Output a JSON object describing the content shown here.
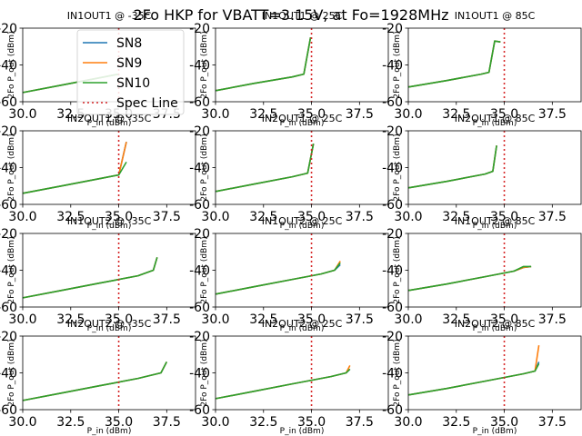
{
  "figure": {
    "title": "2Fo HKP for VBATT=3.15V, at Fo=1928MHz"
  },
  "legend": {
    "placement": "upper-left of first panel",
    "entries": [
      {
        "label": "SN8",
        "color": "#1f77b4",
        "style": "solid"
      },
      {
        "label": "SN9",
        "color": "#ff7f0e",
        "style": "solid"
      },
      {
        "label": "SN10",
        "color": "#2ca02c",
        "style": "solid"
      },
      {
        "label": "Spec Line",
        "color": "#d62728",
        "style": "dotted"
      }
    ]
  },
  "chart_data": [
    {
      "type": "line",
      "title": "IN1OUT1 @ -35C",
      "xlabel": "P_in (dBm)",
      "ylabel": "2Fo P_out (dBm)",
      "xlim": [
        30,
        39
      ],
      "ylim": [
        -60,
        -20
      ],
      "xticks": [
        "30.0",
        "32.5",
        "35.0",
        "37.5"
      ],
      "yticks": [
        "-60",
        "-40",
        "-20"
      ],
      "spec_x": 35.0,
      "series": [
        {
          "name": "SN8",
          "x": [
            30,
            32,
            34,
            35
          ],
          "y": [
            -55,
            -51,
            -47,
            -45
          ]
        },
        {
          "name": "SN9",
          "x": [
            30,
            32,
            34,
            35
          ],
          "y": [
            -55,
            -51,
            -47,
            -45
          ]
        },
        {
          "name": "SN10",
          "x": [
            30,
            32,
            34,
            35
          ],
          "y": [
            -55,
            -51,
            -47,
            -45
          ]
        }
      ]
    },
    {
      "type": "line",
      "title": "IN1OUT1 @ 25C",
      "xlabel": "P_in (dBm)",
      "ylabel": "2Fo P_out (dBm)",
      "xlim": [
        30,
        39
      ],
      "ylim": [
        -60,
        -20
      ],
      "xticks": [
        "30.0",
        "32.5",
        "35.0",
        "37.5"
      ],
      "yticks": [
        "-60",
        "-40",
        "-20"
      ],
      "spec_x": 35.0,
      "series": [
        {
          "name": "SN8",
          "x": [
            30,
            32,
            34,
            34.6,
            34.95
          ],
          "y": [
            -54,
            -50,
            -46.5,
            -45,
            -25
          ]
        },
        {
          "name": "SN9",
          "x": [
            30,
            32,
            34,
            34.6,
            34.95
          ],
          "y": [
            -54,
            -50,
            -46.5,
            -45,
            -25
          ]
        },
        {
          "name": "SN10",
          "x": [
            30,
            32,
            34,
            34.6,
            34.95
          ],
          "y": [
            -54,
            -50,
            -46.5,
            -45,
            -25
          ]
        }
      ]
    },
    {
      "type": "line",
      "title": "IN1OUT1 @ 85C",
      "xlabel": "P_in (dBm)",
      "ylabel": "2Fo P_out (dBm)",
      "xlim": [
        30,
        39
      ],
      "ylim": [
        -60,
        -20
      ],
      "xticks": [
        "30.0",
        "32.5",
        "35.0",
        "37.5"
      ],
      "yticks": [
        "-60",
        "-40",
        "-20"
      ],
      "spec_x": 35.0,
      "series": [
        {
          "name": "SN8",
          "x": [
            30,
            32,
            33.8,
            34.2,
            34.5,
            34.8
          ],
          "y": [
            -52,
            -48.5,
            -45,
            -44,
            -27,
            -27.5
          ]
        },
        {
          "name": "SN9",
          "x": [
            30,
            32,
            33.8,
            34.2,
            34.5,
            34.8
          ],
          "y": [
            -52,
            -48.5,
            -45,
            -44,
            -27,
            -27.5
          ]
        },
        {
          "name": "SN10",
          "x": [
            30,
            32,
            33.8,
            34.2,
            34.5,
            34.8
          ],
          "y": [
            -52,
            -48.5,
            -45,
            -44,
            -27,
            -27.5
          ]
        }
      ]
    },
    {
      "type": "line",
      "title": "IN2OUT1 @ -35C",
      "xlabel": "P_in (dBm)",
      "ylabel": "2Fo P_out (dBm)",
      "xlim": [
        30,
        39
      ],
      "ylim": [
        -60,
        -20
      ],
      "xticks": [
        "30.0",
        "32.5",
        "35.0",
        "37.5"
      ],
      "yticks": [
        "-60",
        "-40",
        "-20"
      ],
      "spec_x": 35.0,
      "series": [
        {
          "name": "SN8",
          "x": [
            30,
            32,
            34,
            35,
            35.4
          ],
          "y": [
            -54,
            -50,
            -46,
            -44,
            -26
          ]
        },
        {
          "name": "SN9",
          "x": [
            30,
            32,
            34,
            35,
            35.4
          ],
          "y": [
            -54,
            -50,
            -46,
            -44,
            -26
          ]
        },
        {
          "name": "SN10",
          "x": [
            30,
            32,
            34,
            35,
            35.4
          ],
          "y": [
            -54,
            -50,
            -46,
            -44,
            -37
          ]
        }
      ]
    },
    {
      "type": "line",
      "title": "IN2OUT1 @ 25C",
      "xlabel": "P_in (dBm)",
      "ylabel": "2Fo P_out (dBm)",
      "xlim": [
        30,
        39
      ],
      "ylim": [
        -60,
        -20
      ],
      "xticks": [
        "30.0",
        "32.5",
        "35.0",
        "37.5"
      ],
      "yticks": [
        "-60",
        "-40",
        "-20"
      ],
      "spec_x": 35.0,
      "series": [
        {
          "name": "SN8",
          "x": [
            30,
            32,
            34,
            34.8,
            35.1
          ],
          "y": [
            -53,
            -49,
            -45,
            -43,
            -27
          ]
        },
        {
          "name": "SN9",
          "x": [
            30,
            32,
            34,
            34.8,
            35.1
          ],
          "y": [
            -53,
            -49,
            -45,
            -43,
            -27
          ]
        },
        {
          "name": "SN10",
          "x": [
            30,
            32,
            34,
            34.8,
            35.1
          ],
          "y": [
            -53,
            -49,
            -45,
            -43,
            -27
          ]
        }
      ]
    },
    {
      "type": "line",
      "title": "IN2OUT1 @ 85C",
      "xlabel": "P_in (dBm)",
      "ylabel": "2Fo P_out (dBm)",
      "xlim": [
        30,
        39
      ],
      "ylim": [
        -60,
        -20
      ],
      "xticks": [
        "30.0",
        "32.5",
        "35.0",
        "37.5"
      ],
      "yticks": [
        "-60",
        "-40",
        "-20"
      ],
      "spec_x": 35.0,
      "series": [
        {
          "name": "SN8",
          "x": [
            30,
            32,
            34,
            34.4,
            34.6
          ],
          "y": [
            -51,
            -47.5,
            -43.5,
            -42,
            -28
          ]
        },
        {
          "name": "SN9",
          "x": [
            30,
            32,
            34,
            34.4,
            34.6
          ],
          "y": [
            -51,
            -47.5,
            -43.5,
            -42,
            -28
          ]
        },
        {
          "name": "SN10",
          "x": [
            30,
            32,
            34,
            34.4,
            34.6
          ],
          "y": [
            -51,
            -47.5,
            -43.5,
            -42,
            -28
          ]
        }
      ]
    },
    {
      "type": "line",
      "title": "IN1OUT2 @ -35C",
      "xlabel": "P_in (dBm)",
      "ylabel": "2Fo P_out (dBm)",
      "xlim": [
        30,
        39
      ],
      "ylim": [
        -60,
        -20
      ],
      "xticks": [
        "30.0",
        "32.5",
        "35.0",
        "37.5"
      ],
      "yticks": [
        "-60",
        "-40",
        "-20"
      ],
      "spec_x": 35.0,
      "series": [
        {
          "name": "SN8",
          "x": [
            30,
            32,
            34,
            36,
            36.8,
            37
          ],
          "y": [
            -55,
            -51,
            -47,
            -43,
            -40,
            -33
          ]
        },
        {
          "name": "SN9",
          "x": [
            30,
            32,
            34,
            36,
            36.8,
            37
          ],
          "y": [
            -55,
            -51,
            -47,
            -43,
            -40,
            -33
          ]
        },
        {
          "name": "SN10",
          "x": [
            30,
            32,
            34,
            36,
            36.8,
            37
          ],
          "y": [
            -55,
            -51,
            -47,
            -43,
            -40,
            -33
          ]
        }
      ]
    },
    {
      "type": "line",
      "title": "IN1OUT2 @ 25C",
      "xlabel": "P_in (dBm)",
      "ylabel": "2Fo P_out (dBm)",
      "xlim": [
        30,
        39
      ],
      "ylim": [
        -60,
        -20
      ],
      "xticks": [
        "30.0",
        "32.5",
        "35.0",
        "37.5"
      ],
      "yticks": [
        "-60",
        "-40",
        "-20"
      ],
      "spec_x": 35.0,
      "series": [
        {
          "name": "SN8",
          "x": [
            30,
            32,
            34,
            35.5,
            36.2,
            36.5
          ],
          "y": [
            -53,
            -49,
            -45,
            -42,
            -40,
            -37
          ]
        },
        {
          "name": "SN9",
          "x": [
            30,
            32,
            34,
            35.5,
            36.2,
            36.5
          ],
          "y": [
            -53,
            -49,
            -45,
            -42,
            -40,
            -35
          ]
        },
        {
          "name": "SN10",
          "x": [
            30,
            32,
            34,
            35.5,
            36.2,
            36.5
          ],
          "y": [
            -53,
            -49,
            -45,
            -42,
            -40,
            -36
          ]
        }
      ]
    },
    {
      "type": "line",
      "title": "IN1OUT2 @ 85C",
      "xlabel": "P_in (dBm)",
      "ylabel": "2Fo P_out (dBm)",
      "xlim": [
        30,
        39
      ],
      "ylim": [
        -60,
        -20
      ],
      "xticks": [
        "30.0",
        "32.5",
        "35.0",
        "37.5"
      ],
      "yticks": [
        "-60",
        "-40",
        "-20"
      ],
      "spec_x": 35.0,
      "series": [
        {
          "name": "SN8",
          "x": [
            30,
            32,
            34,
            35.5,
            36,
            36.4
          ],
          "y": [
            -51,
            -47.5,
            -43.5,
            -40.5,
            -38.5,
            -38
          ]
        },
        {
          "name": "SN9",
          "x": [
            30,
            32,
            34,
            35.5,
            36,
            36.4
          ],
          "y": [
            -51,
            -47.5,
            -43.5,
            -40.5,
            -38.5,
            -38
          ]
        },
        {
          "name": "SN10",
          "x": [
            30,
            32,
            34,
            35.5,
            36,
            36.4
          ],
          "y": [
            -51,
            -47.5,
            -43.5,
            -40.5,
            -38,
            -38
          ]
        }
      ]
    },
    {
      "type": "line",
      "title": "IN2OUT2 @ -35C",
      "xlabel": "P_in (dBm)",
      "ylabel": "2Fo P_out (dBm)",
      "xlim": [
        30,
        39
      ],
      "ylim": [
        -60,
        -20
      ],
      "xticks": [
        "30.0",
        "32.5",
        "35.0",
        "37.5"
      ],
      "yticks": [
        "-60",
        "-40",
        "-20"
      ],
      "spec_x": 35.0,
      "series": [
        {
          "name": "SN8",
          "x": [
            30,
            32,
            34,
            36,
            37.2,
            37.5
          ],
          "y": [
            -55,
            -51,
            -47,
            -43,
            -40,
            -34
          ]
        },
        {
          "name": "SN9",
          "x": [
            30,
            32,
            34,
            36,
            37.2,
            37.5
          ],
          "y": [
            -55,
            -51,
            -47,
            -43,
            -40,
            -34
          ]
        },
        {
          "name": "SN10",
          "x": [
            30,
            32,
            34,
            36,
            37.2,
            37.5
          ],
          "y": [
            -55,
            -51,
            -47,
            -43,
            -40,
            -34
          ]
        }
      ]
    },
    {
      "type": "line",
      "title": "IN2OUT2 @ 25C",
      "xlabel": "P_in (dBm)",
      "ylabel": "2Fo P_out (dBm)",
      "xlim": [
        30,
        39
      ],
      "ylim": [
        -60,
        -20
      ],
      "xticks": [
        "30.0",
        "32.5",
        "35.0",
        "37.5"
      ],
      "yticks": [
        "-60",
        "-40",
        "-20"
      ],
      "spec_x": 35.0,
      "series": [
        {
          "name": "SN8",
          "x": [
            30,
            32,
            34,
            36,
            36.8,
            37
          ],
          "y": [
            -54,
            -50,
            -46,
            -42,
            -40,
            -38
          ]
        },
        {
          "name": "SN9",
          "x": [
            30,
            32,
            34,
            36,
            36.8,
            37
          ],
          "y": [
            -54,
            -50,
            -46,
            -42,
            -40,
            -36
          ]
        },
        {
          "name": "SN10",
          "x": [
            30,
            32,
            34,
            36,
            36.8,
            37
          ],
          "y": [
            -54,
            -50,
            -46,
            -42,
            -40,
            -38
          ]
        }
      ]
    },
    {
      "type": "line",
      "title": "IN2OUT2 @ 85C",
      "xlabel": "P_in (dBm)",
      "ylabel": "2Fo P_out (dBm)",
      "xlim": [
        30,
        39
      ],
      "ylim": [
        -60,
        -20
      ],
      "xticks": [
        "30.0",
        "32.5",
        "35.0",
        "37.5"
      ],
      "yticks": [
        "-60",
        "-40",
        "-20"
      ],
      "spec_x": 35.0,
      "series": [
        {
          "name": "SN8",
          "x": [
            30,
            32,
            34,
            36,
            36.6,
            36.8
          ],
          "y": [
            -52,
            -48.5,
            -44.5,
            -40.5,
            -39,
            -34
          ]
        },
        {
          "name": "SN9",
          "x": [
            30,
            32,
            34,
            36,
            36.6,
            36.8
          ],
          "y": [
            -52,
            -48.5,
            -44.5,
            -40.5,
            -39,
            -25
          ]
        },
        {
          "name": "SN10",
          "x": [
            30,
            32,
            34,
            36,
            36.6,
            36.8
          ],
          "y": [
            -52,
            -48.5,
            -44.5,
            -40.5,
            -39,
            -35
          ]
        }
      ]
    }
  ]
}
